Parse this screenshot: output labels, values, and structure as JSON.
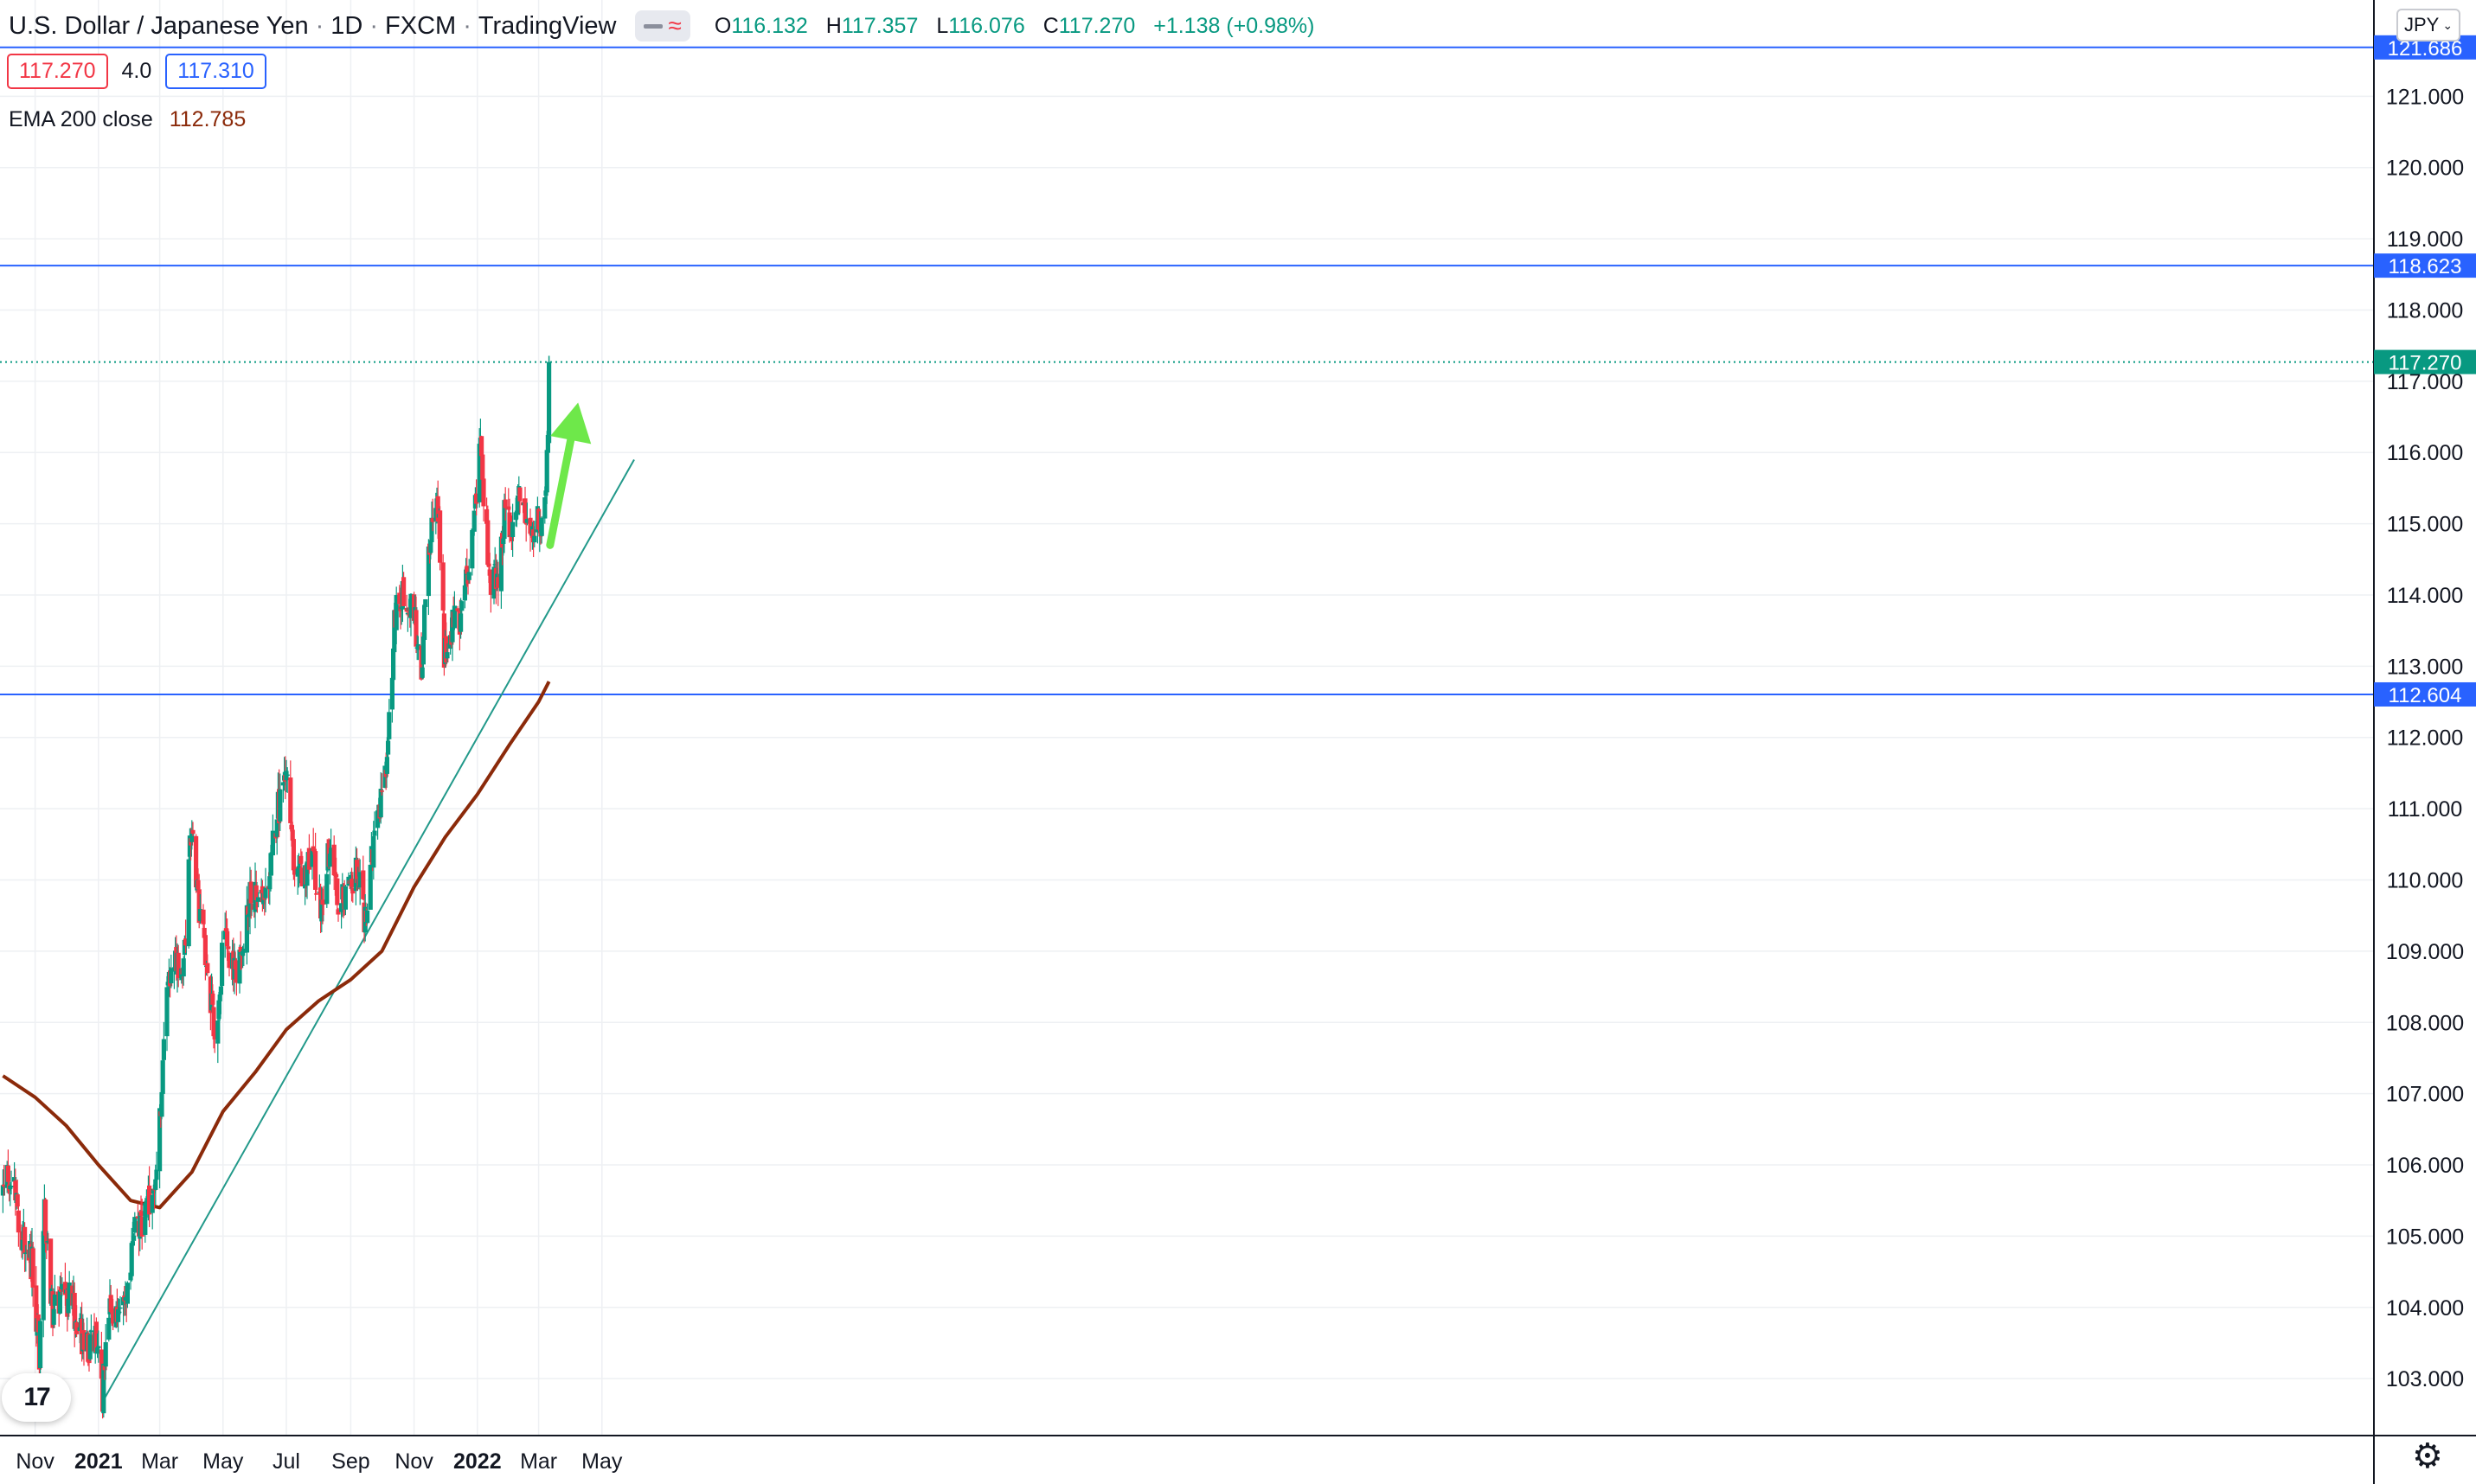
{
  "header": {
    "symbol": "U.S. Dollar / Japanese Yen",
    "interval": "1D",
    "broker": "FXCM",
    "platform": "TradingView",
    "ohlc": {
      "o_label": "O",
      "o": "116.132",
      "h_label": "H",
      "h": "117.357",
      "l_label": "L",
      "l": "116.076",
      "c_label": "C",
      "c": "117.270",
      "change": "+1.138 (+0.98%)"
    }
  },
  "quote": {
    "bid": "117.270",
    "spread": "4.0",
    "ask": "117.310"
  },
  "indicator": {
    "label": "EMA 200 close",
    "value": "112.785"
  },
  "currency_button": "JPY",
  "logo_text": "17",
  "colors": {
    "up": "#089981",
    "down": "#f23645",
    "ema": "#8b2a0a",
    "hline": "#2962ff",
    "trendline": "#22998a",
    "arrow": "#6ee84a",
    "grid": "#eef0f3"
  },
  "chart_data": {
    "type": "candlestick",
    "y_axis": {
      "min": 102.5,
      "max": 122.0,
      "ticks": [
        "103.000",
        "104.000",
        "105.000",
        "106.000",
        "107.000",
        "108.000",
        "109.000",
        "110.000",
        "111.000",
        "112.000",
        "113.000",
        "114.000",
        "115.000",
        "116.000",
        "117.000",
        "118.000",
        "119.000",
        "120.000",
        "121.000"
      ]
    },
    "x_axis": {
      "range": [
        "2020-10-01",
        "2022-06-01"
      ],
      "ticks": [
        {
          "date": "2020-11-01",
          "label": "Nov",
          "bold": false
        },
        {
          "date": "2021-01-01",
          "label": "2021",
          "bold": true
        },
        {
          "date": "2021-03-01",
          "label": "Mar",
          "bold": false
        },
        {
          "date": "2021-05-01",
          "label": "May",
          "bold": false
        },
        {
          "date": "2021-07-01",
          "label": "Jul",
          "bold": false
        },
        {
          "date": "2021-09-01",
          "label": "Sep",
          "bold": false
        },
        {
          "date": "2021-11-01",
          "label": "Nov",
          "bold": false
        },
        {
          "date": "2022-01-01",
          "label": "2022",
          "bold": true
        },
        {
          "date": "2022-03-01",
          "label": "Mar",
          "bold": false
        },
        {
          "date": "2022-05-01",
          "label": "May",
          "bold": false
        }
      ]
    },
    "price_path": [
      [
        "2020-10-01",
        105.6
      ],
      [
        "2020-10-08",
        105.9
      ],
      [
        "2020-10-15",
        105.4
      ],
      [
        "2020-10-22",
        104.8
      ],
      [
        "2020-10-29",
        104.6
      ],
      [
        "2020-11-05",
        103.4
      ],
      [
        "2020-11-10",
        105.3
      ],
      [
        "2020-11-18",
        103.9
      ],
      [
        "2020-11-26",
        104.2
      ],
      [
        "2020-12-04",
        104.1
      ],
      [
        "2020-12-12",
        103.8
      ],
      [
        "2020-12-20",
        103.4
      ],
      [
        "2020-12-28",
        103.6
      ],
      [
        "2021-01-05",
        102.8
      ],
      [
        "2021-01-12",
        104.0
      ],
      [
        "2021-01-20",
        103.9
      ],
      [
        "2021-01-28",
        104.2
      ],
      [
        "2021-02-05",
        105.3
      ],
      [
        "2021-02-14",
        105.2
      ],
      [
        "2021-02-22",
        105.6
      ],
      [
        "2021-03-01",
        106.6
      ],
      [
        "2021-03-08",
        108.6
      ],
      [
        "2021-03-15",
        108.9
      ],
      [
        "2021-03-24",
        108.7
      ],
      [
        "2021-03-31",
        110.7
      ],
      [
        "2021-04-07",
        109.7
      ],
      [
        "2021-04-15",
        108.8
      ],
      [
        "2021-04-23",
        107.8
      ],
      [
        "2021-05-03",
        109.3
      ],
      [
        "2021-05-12",
        108.7
      ],
      [
        "2021-05-20",
        109.1
      ],
      [
        "2021-05-28",
        109.8
      ],
      [
        "2021-06-05",
        109.6
      ],
      [
        "2021-06-14",
        110.0
      ],
      [
        "2021-06-22",
        110.9
      ],
      [
        "2021-07-01",
        111.5
      ],
      [
        "2021-07-09",
        110.2
      ],
      [
        "2021-07-16",
        110.1
      ],
      [
        "2021-07-26",
        110.3
      ],
      [
        "2021-08-04",
        109.5
      ],
      [
        "2021-08-11",
        110.4
      ],
      [
        "2021-08-20",
        109.6
      ],
      [
        "2021-08-29",
        109.8
      ],
      [
        "2021-09-07",
        110.1
      ],
      [
        "2021-09-15",
        109.4
      ],
      [
        "2021-09-23",
        110.6
      ],
      [
        "2021-10-01",
        111.1
      ],
      [
        "2021-10-08",
        112.1
      ],
      [
        "2021-10-15",
        114.1
      ],
      [
        "2021-10-22",
        113.9
      ],
      [
        "2021-10-31",
        113.9
      ],
      [
        "2021-11-08",
        112.9
      ],
      [
        "2021-11-16",
        114.8
      ],
      [
        "2021-11-24",
        115.3
      ],
      [
        "2021-11-30",
        113.2
      ],
      [
        "2021-12-08",
        113.6
      ],
      [
        "2021-12-16",
        113.7
      ],
      [
        "2021-12-24",
        114.4
      ],
      [
        "2022-01-04",
        116.0
      ],
      [
        "2022-01-12",
        114.3
      ],
      [
        "2022-01-20",
        114.2
      ],
      [
        "2022-01-28",
        115.3
      ],
      [
        "2022-02-04",
        114.9
      ],
      [
        "2022-02-12",
        115.6
      ],
      [
        "2022-02-20",
        114.9
      ],
      [
        "2022-02-28",
        115.0
      ],
      [
        "2022-03-04",
        114.9
      ],
      [
        "2022-03-09",
        115.9
      ],
      [
        "2022-03-10",
        116.1
      ],
      [
        "2022-03-11",
        117.27
      ]
    ],
    "last_candle": {
      "date": "2022-03-11",
      "open": 116.132,
      "high": 117.357,
      "low": 116.076,
      "close": 117.27
    },
    "ema200": [
      [
        "2020-10-01",
        107.25
      ],
      [
        "2020-11-01",
        106.95
      ],
      [
        "2020-12-01",
        106.55
      ],
      [
        "2021-01-01",
        106.0
      ],
      [
        "2021-02-01",
        105.5
      ],
      [
        "2021-03-01",
        105.4
      ],
      [
        "2021-04-01",
        105.9
      ],
      [
        "2021-05-01",
        106.75
      ],
      [
        "2021-06-01",
        107.3
      ],
      [
        "2021-07-01",
        107.9
      ],
      [
        "2021-08-01",
        108.3
      ],
      [
        "2021-09-01",
        108.6
      ],
      [
        "2021-10-01",
        109.0
      ],
      [
        "2021-11-01",
        109.9
      ],
      [
        "2021-12-01",
        110.6
      ],
      [
        "2022-01-01",
        111.2
      ],
      [
        "2022-02-01",
        111.9
      ],
      [
        "2022-03-01",
        112.5
      ],
      [
        "2022-03-11",
        112.785
      ]
    ],
    "horizontal_levels": [
      {
        "price": 121.686,
        "label": "121.686"
      },
      {
        "price": 118.623,
        "label": "118.623"
      },
      {
        "price": 112.604,
        "label": "112.604"
      }
    ],
    "last_price": {
      "price": 117.27,
      "label": "117.270"
    },
    "trendline": {
      "from": [
        "2021-01-06",
        102.7
      ],
      "to": [
        "2022-06-01",
        115.9
      ]
    },
    "arrow": {
      "from": [
        "2022-03-12",
        114.7
      ],
      "to": [
        "2022-04-08",
        116.7
      ]
    }
  }
}
